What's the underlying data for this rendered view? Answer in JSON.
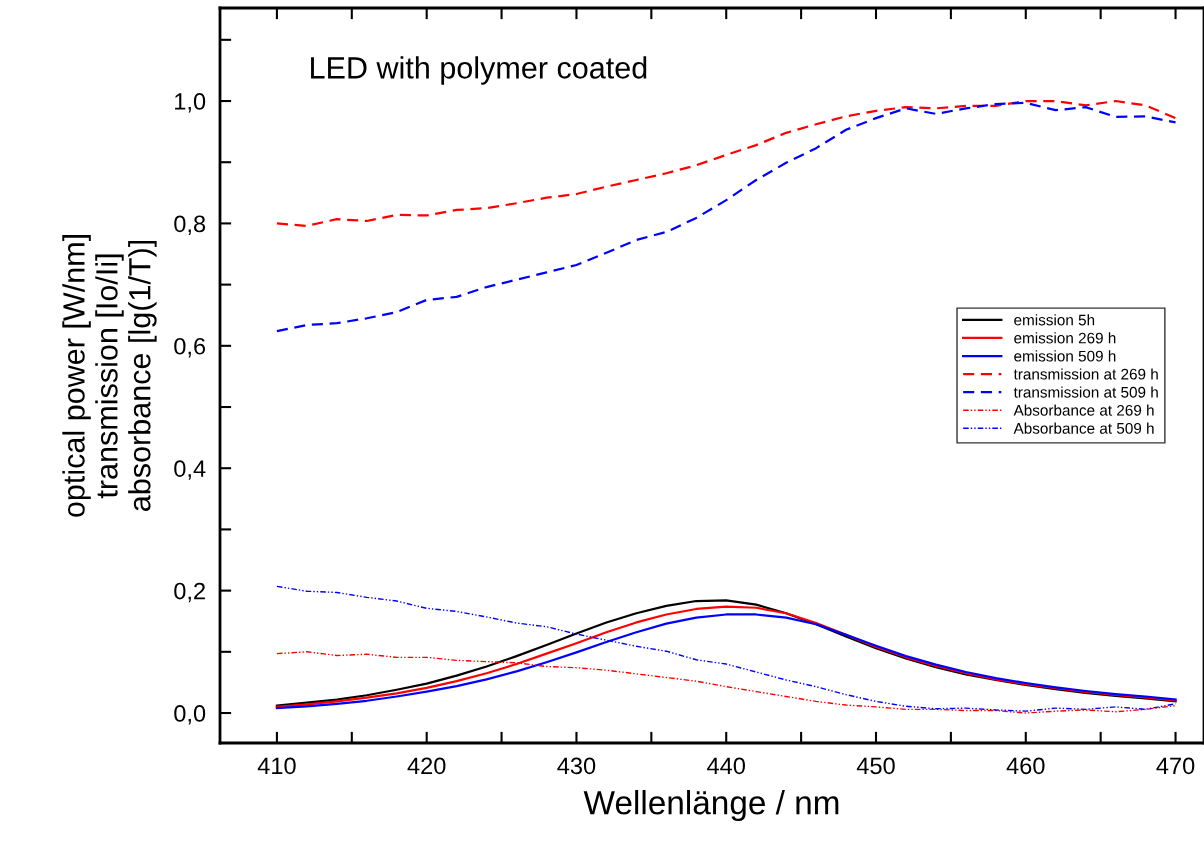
{
  "chart_data": {
    "type": "line",
    "title": "LED with polymer coated",
    "xlabel": "Wellenlänge / nm",
    "ylabel": "optical power [W/nm]\ntransmission [Io/Ii]\nabsorbance [lg(1/T)]",
    "x": [
      410,
      412,
      414,
      416,
      418,
      420,
      422,
      424,
      426,
      428,
      430,
      432,
      434,
      436,
      438,
      440,
      442,
      444,
      446,
      448,
      450,
      452,
      454,
      456,
      458,
      460,
      462,
      464,
      466,
      468,
      470
    ],
    "series": [
      {
        "name": "emission 5h",
        "color": "#000000",
        "line_style": "solid",
        "values": [
          0.012,
          0.017,
          0.022,
          0.029,
          0.038,
          0.048,
          0.061,
          0.076,
          0.093,
          0.111,
          0.13,
          0.148,
          0.163,
          0.175,
          0.183,
          0.184,
          0.177,
          0.163,
          0.145,
          0.125,
          0.106,
          0.089,
          0.075,
          0.063,
          0.054,
          0.046,
          0.039,
          0.033,
          0.028,
          0.024,
          0.019
        ]
      },
      {
        "name": "emission 269 h",
        "color": "#ff0000",
        "line_style": "solid",
        "values": [
          0.01,
          0.014,
          0.019,
          0.025,
          0.032,
          0.041,
          0.052,
          0.065,
          0.08,
          0.097,
          0.114,
          0.132,
          0.148,
          0.161,
          0.17,
          0.174,
          0.172,
          0.163,
          0.147,
          0.128,
          0.108,
          0.091,
          0.077,
          0.065,
          0.055,
          0.047,
          0.0405,
          0.0345,
          0.0295,
          0.0255,
          0.0205
        ]
      },
      {
        "name": "emission 509 h",
        "color": "#0000ff",
        "line_style": "solid",
        "values": [
          0.008,
          0.011,
          0.015,
          0.02,
          0.027,
          0.035,
          0.044,
          0.055,
          0.068,
          0.083,
          0.099,
          0.116,
          0.132,
          0.146,
          0.156,
          0.161,
          0.161,
          0.156,
          0.145,
          0.128,
          0.11,
          0.093,
          0.079,
          0.067,
          0.057,
          0.049,
          0.042,
          0.036,
          0.031,
          0.027,
          0.022
        ]
      },
      {
        "name": "transmission at 269 h",
        "color": "#ff0000",
        "line_style": "dashed",
        "values": [
          0.8,
          0.796,
          0.807,
          0.804,
          0.814,
          0.813,
          0.822,
          0.825,
          0.833,
          0.842,
          0.848,
          0.86,
          0.871,
          0.882,
          0.895,
          0.912,
          0.928,
          0.948,
          0.962,
          0.975,
          0.984,
          0.99,
          0.988,
          0.992,
          0.992,
          1.0,
          1.0,
          0.993,
          1.0,
          0.993,
          0.972
        ]
      },
      {
        "name": "transmission at 509 h",
        "color": "#0000ff",
        "line_style": "dashed",
        "values": [
          0.624,
          0.634,
          0.637,
          0.645,
          0.655,
          0.675,
          0.68,
          0.696,
          0.708,
          0.72,
          0.732,
          0.752,
          0.773,
          0.786,
          0.809,
          0.838,
          0.871,
          0.899,
          0.923,
          0.953,
          0.972,
          0.988,
          0.979,
          0.988,
          0.995,
          0.997,
          0.985,
          0.99,
          0.974,
          0.975,
          0.965
        ]
      },
      {
        "name": "Absorbance at 269 h",
        "color": "#ff0000",
        "line_style": "dashdot",
        "values": [
          0.097,
          0.1,
          0.094,
          0.096,
          0.091,
          0.091,
          0.086,
          0.084,
          0.082,
          0.076,
          0.074,
          0.07,
          0.064,
          0.058,
          0.052,
          0.043,
          0.035,
          0.027,
          0.019,
          0.013,
          0.01,
          0.006,
          0.006,
          0.004,
          0.004,
          0.0,
          0.003,
          0.005,
          0.002,
          0.006,
          0.012
        ]
      },
      {
        "name": "Absorbance at 509 h",
        "color": "#0000ff",
        "line_style": "dashdot",
        "values": [
          0.207,
          0.199,
          0.197,
          0.189,
          0.183,
          0.171,
          0.166,
          0.157,
          0.147,
          0.141,
          0.129,
          0.119,
          0.109,
          0.101,
          0.087,
          0.08,
          0.067,
          0.054,
          0.043,
          0.03,
          0.019,
          0.011,
          0.007,
          0.008,
          0.005,
          0.003,
          0.008,
          0.006,
          0.01,
          0.006,
          0.015
        ]
      }
    ],
    "xlim": [
      406.2,
      471.9
    ],
    "ylim": [
      -0.049,
      1.152
    ],
    "xticks": [
      410,
      {
        "value": 415,
        "label": null
      },
      420,
      {
        "value": 425,
        "label": null
      },
      430,
      {
        "value": 435,
        "label": null
      },
      440,
      {
        "value": 445,
        "label": null
      },
      450,
      {
        "value": 455,
        "label": null
      },
      460,
      {
        "value": 465,
        "label": null
      },
      470
    ],
    "yticks": [
      {
        "value": 0,
        "label": "0,0"
      },
      {
        "value": 0.1,
        "label": null
      },
      {
        "value": 0.2,
        "label": "0,2"
      },
      {
        "value": 0.3,
        "label": null
      },
      {
        "value": 0.4,
        "label": "0,4"
      },
      {
        "value": 0.5,
        "label": null
      },
      {
        "value": 0.6,
        "label": "0,6"
      },
      {
        "value": 0.7,
        "label": null
      },
      {
        "value": 0.8,
        "label": "0,8"
      },
      {
        "value": 0.9,
        "label": null
      },
      {
        "value": 1.0,
        "label": "1,0"
      },
      {
        "value": 1.1,
        "label": null
      }
    ],
    "grid": false,
    "legend": "right",
    "marker": "none"
  }
}
